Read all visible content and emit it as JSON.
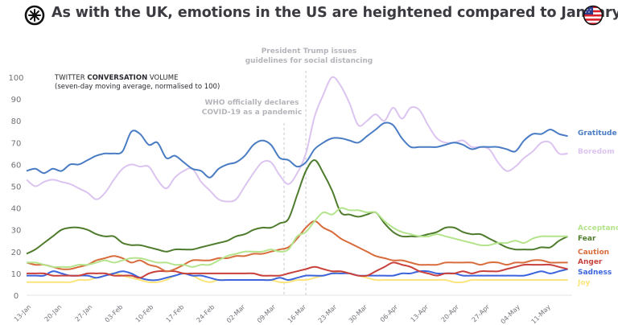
{
  "header": {
    "title": "As with the UK, emotions in the US are heightened compared to January and February",
    "logo_icon": "asterisk-circle-logo-icon",
    "flag_icon": "us-flag-icon"
  },
  "chart_data": {
    "type": "line",
    "title": "As with the UK, emotions in the US are heightened compared to January and February",
    "subtitle_line1_parts": [
      "TWITTER ",
      "CONVERSATION",
      " VOLUME"
    ],
    "subtitle_line2": "(seven-day moving average, normalised to 100)",
    "xlabel": "",
    "ylabel": "",
    "ylim": [
      0,
      100
    ],
    "yticks": [
      0,
      10,
      20,
      30,
      40,
      50,
      60,
      70,
      80,
      90,
      100
    ],
    "grid": false,
    "legend_placement": "right",
    "x_start": "13-Jan",
    "x_days_span": 125,
    "xtick_labels": [
      "13-Jan",
      "20-Jan",
      "27-Jan",
      "03-Feb",
      "10-Feb",
      "17-Feb",
      "24-Feb",
      "02-Mar",
      "09-Mar",
      "16-Mar",
      "23-Mar",
      "30-Mar",
      "06-Apr",
      "13-Apr",
      "20-Apr",
      "27-Apr",
      "04-May",
      "11-May"
    ],
    "xtick_days": [
      0,
      7,
      14,
      21,
      28,
      35,
      42,
      49,
      56,
      63,
      70,
      77,
      84,
      91,
      98,
      105,
      112,
      119
    ],
    "annotations": [
      {
        "day": 59,
        "text_lines": [
          "WHO officially declares",
          "COVID-19 as a pandemic"
        ],
        "top_value": 79
      },
      {
        "day": 64,
        "text_lines": [
          "President Trump issues",
          "guidelines for social distancing"
        ],
        "top_value": 103
      }
    ],
    "x_days": [
      0,
      2,
      4,
      6,
      8,
      10,
      12,
      14,
      16,
      18,
      20,
      22,
      24,
      26,
      28,
      30,
      32,
      34,
      36,
      38,
      40,
      42,
      44,
      46,
      48,
      50,
      52,
      54,
      56,
      58,
      60,
      62,
      64,
      66,
      68,
      70,
      72,
      74,
      76,
      78,
      80,
      82,
      84,
      86,
      88,
      90,
      92,
      94,
      96,
      98,
      100,
      102,
      104,
      106,
      108,
      110,
      112,
      114,
      116,
      118,
      120,
      122,
      124
    ],
    "series": [
      {
        "name": "Gratitude",
        "color": "#4a7cc4",
        "values": [
          57,
          58,
          56,
          58,
          57,
          60,
          60,
          62,
          64,
          65,
          65,
          66,
          75,
          74,
          69,
          70,
          63,
          64,
          61,
          58,
          57,
          54,
          58,
          60,
          61,
          64,
          69,
          71,
          69,
          63,
          62,
          59,
          61,
          67,
          70,
          72,
          72,
          71,
          70,
          73,
          76,
          79,
          78,
          72,
          68,
          68,
          68,
          68,
          69,
          70,
          69,
          67,
          68,
          68,
          68,
          67,
          66,
          71,
          74,
          74,
          76,
          74,
          73
        ]
      },
      {
        "name": "Boredom",
        "color": "#dcc4f0",
        "values": [
          53,
          50,
          52,
          53,
          52,
          51,
          49,
          47,
          44,
          47,
          53,
          58,
          60,
          59,
          59,
          53,
          49,
          54,
          57,
          58,
          52,
          48,
          44,
          43,
          44,
          50,
          56,
          61,
          61,
          55,
          51,
          56,
          65,
          82,
          92,
          100,
          96,
          88,
          78,
          80,
          83,
          80,
          86,
          81,
          86,
          85,
          78,
          72,
          70,
          70,
          71,
          68,
          68,
          67,
          61,
          57,
          59,
          63,
          66,
          70,
          70,
          65,
          65
        ]
      },
      {
        "name": "Acceptance",
        "color": "#b4e48c",
        "values": [
          15,
          15,
          14,
          13,
          13,
          13,
          14,
          14,
          15,
          16,
          15,
          16,
          17,
          17,
          16,
          15,
          15,
          14,
          14,
          13,
          14,
          14,
          16,
          18,
          19,
          20,
          20,
          20,
          21,
          20,
          21,
          27,
          29,
          34,
          38,
          37,
          40,
          39,
          39,
          38,
          38,
          34,
          31,
          29,
          28,
          27,
          27,
          28,
          27,
          26,
          25,
          24,
          23,
          23,
          24,
          24,
          25,
          24,
          26,
          27,
          27,
          27,
          27
        ]
      },
      {
        "name": "Fear",
        "color": "#4e7c2c",
        "values": [
          19,
          21,
          24,
          27,
          30,
          31,
          31,
          30,
          28,
          27,
          27,
          24,
          23,
          23,
          22,
          21,
          20,
          21,
          21,
          21,
          22,
          23,
          24,
          25,
          27,
          28,
          30,
          31,
          31,
          33,
          35,
          46,
          57,
          62,
          56,
          48,
          38,
          37,
          36,
          37,
          38,
          33,
          29,
          27,
          27,
          27,
          28,
          29,
          31,
          31,
          29,
          28,
          28,
          26,
          24,
          22,
          21,
          21,
          21,
          22,
          22,
          25,
          27
        ]
      },
      {
        "name": "Caution",
        "color": "#d86c3c",
        "values": [
          15,
          14,
          14,
          13,
          12,
          12,
          13,
          14,
          16,
          17,
          18,
          17,
          15,
          16,
          14,
          13,
          11,
          12,
          14,
          16,
          16,
          16,
          17,
          17,
          18,
          18,
          19,
          19,
          20,
          21,
          22,
          26,
          31,
          34,
          31,
          29,
          26,
          24,
          22,
          20,
          18,
          17,
          16,
          16,
          15,
          14,
          14,
          14,
          15,
          15,
          15,
          15,
          14,
          15,
          15,
          14,
          15,
          15,
          16,
          16,
          15,
          15,
          15
        ]
      },
      {
        "name": "Anger",
        "color": "#c8413c",
        "values": [
          10,
          10,
          10,
          9,
          9,
          9,
          9,
          10,
          10,
          10,
          9,
          9,
          9,
          8,
          10,
          11,
          11,
          11,
          10,
          10,
          10,
          10,
          10,
          10,
          10,
          10,
          10,
          9,
          9,
          9,
          10,
          11,
          12,
          13,
          12,
          11,
          11,
          10,
          9,
          9,
          11,
          13,
          15,
          14,
          13,
          11,
          10,
          9,
          10,
          10,
          11,
          10,
          11,
          11,
          11,
          12,
          13,
          14,
          14,
          14,
          14,
          13,
          12
        ]
      },
      {
        "name": "Sadness",
        "color": "#3c64dc",
        "values": [
          9,
          9,
          9,
          11,
          10,
          9,
          9,
          9,
          8,
          9,
          10,
          11,
          10,
          8,
          7,
          7,
          8,
          9,
          10,
          9,
          9,
          8,
          7,
          7,
          7,
          7,
          7,
          7,
          7,
          8,
          7,
          8,
          9,
          9,
          9,
          10,
          10,
          10,
          9,
          9,
          9,
          9,
          9,
          10,
          10,
          11,
          11,
          10,
          10,
          10,
          9,
          9,
          9,
          9,
          9,
          9,
          9,
          9,
          10,
          11,
          10,
          11,
          12
        ]
      },
      {
        "name": "Joy",
        "color": "#fce47c",
        "values": [
          6,
          6,
          6,
          6,
          6,
          6,
          7,
          7,
          8,
          9,
          10,
          9,
          8,
          7,
          6,
          6,
          7,
          9,
          10,
          9,
          7,
          6,
          7,
          7,
          7,
          7,
          7,
          7,
          7,
          6,
          6,
          7,
          7,
          8,
          9,
          10,
          11,
          10,
          9,
          8,
          7,
          7,
          7,
          7,
          7,
          7,
          7,
          7,
          7,
          6,
          6,
          7,
          7,
          7,
          7,
          7,
          7,
          7,
          7,
          7,
          7,
          7,
          7
        ]
      }
    ]
  }
}
